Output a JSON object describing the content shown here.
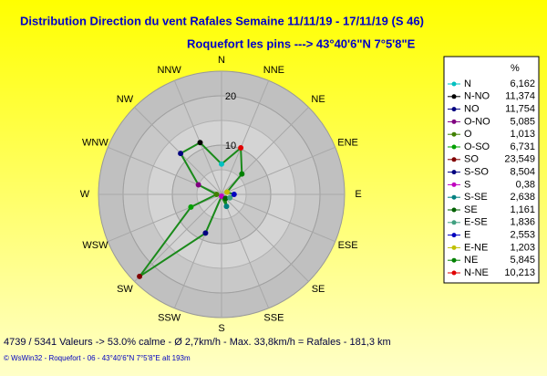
{
  "chart_data": {
    "type": "radar",
    "title": "Distribution Direction du vent Rafales  Semaine 11/11/19 - 17/11/19 (S 46)",
    "subtitle": "Roquefort les pins   --->  43°40'6\"N 7°5'8\"E",
    "direction": "counterclockwise",
    "axis_labels": [
      "N",
      "NNE",
      "NE",
      "ENE",
      "E",
      "ESE",
      "SE",
      "SSE",
      "S",
      "SSW",
      "SW",
      "WSW",
      "W",
      "WNW",
      "NW",
      "NNW"
    ],
    "legend_title": "%",
    "categories": [
      "N",
      "N-NO",
      "NO",
      "O-NO",
      "O",
      "O-SO",
      "SO",
      "S-SO",
      "S",
      "S-SE",
      "SE",
      "E-SE",
      "E",
      "E-NE",
      "NE",
      "N-NE"
    ],
    "values": [
      6.162,
      11.374,
      11.754,
      5.085,
      1.013,
      6.731,
      23.549,
      8.504,
      0.38,
      2.638,
      1.161,
      1.836,
      2.553,
      1.203,
      5.845,
      10.213
    ],
    "value_labels": [
      "6,162",
      "11,374",
      "11,754",
      "5,085",
      "1,013",
      "6,731",
      "23,549",
      "8,504",
      "0,38",
      "2,638",
      "1,161",
      "1,836",
      "2,553",
      "1,203",
      "5,845",
      "10,213"
    ],
    "colors": [
      "#00c0c0",
      "#000000",
      "#000080",
      "#800080",
      "#408000",
      "#00a000",
      "#800000",
      "#000080",
      "#c000c0",
      "#008080",
      "#006000",
      "#40a080",
      "#0000c0",
      "#c0c000",
      "#008000",
      "#e00000"
    ],
    "line_color": "#1a8a1a",
    "rlim": [
      0,
      25
    ],
    "rticks": [
      10,
      20
    ],
    "footer": "4739 / 5341 Valeurs -> 53.0% calme   -   Ø 2,7km/h   -   Max. 33,8km/h = Rafales   -    181,3 km",
    "credit": "© WsWin32  -  Roquefort - 06  -  43°40'6\"N 7°5'8\"E alt 193m"
  }
}
